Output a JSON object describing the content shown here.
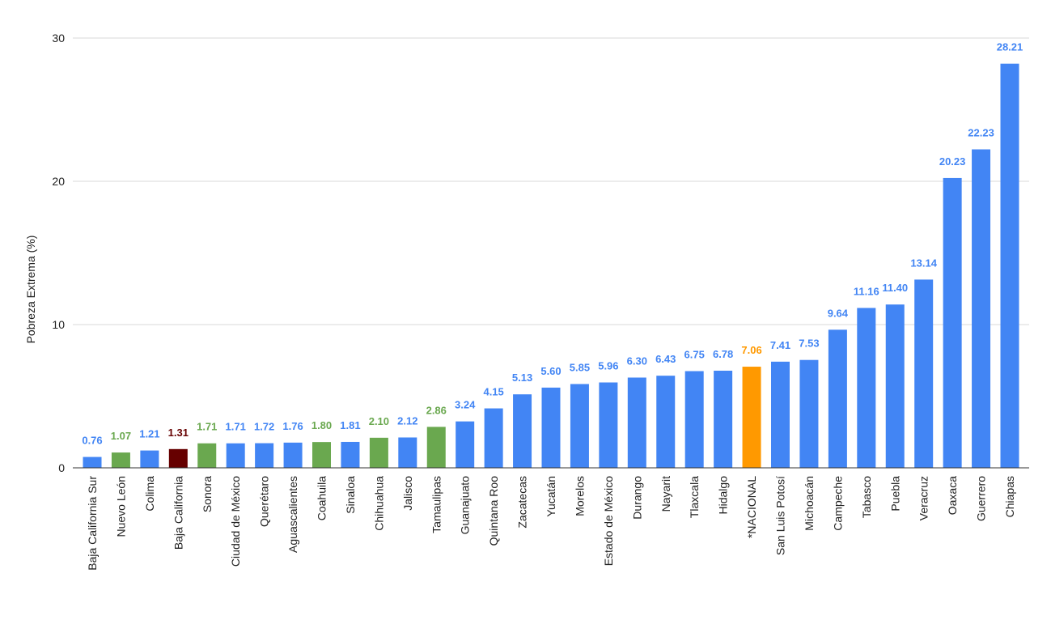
{
  "chart_data": {
    "type": "bar",
    "ylabel": "Pobreza Extrema (%)",
    "xlabel": "",
    "ylim": [
      0,
      30
    ],
    "yticks": [
      0,
      10,
      20,
      30
    ],
    "grid": true,
    "colors": {
      "default": "#4285F4",
      "green": "#6AA84F",
      "dark_red": "#660000",
      "orange": "#FF9900",
      "label_default": "#4285F4",
      "label_green": "#6AA84F",
      "label_dark_red": "#660000",
      "label_orange": "#FF9900"
    },
    "bars": [
      {
        "category": "Baja California Sur",
        "value": 0.76,
        "label": "0.76",
        "color": "default"
      },
      {
        "category": "Nuevo León",
        "value": 1.07,
        "label": "1.07",
        "color": "green"
      },
      {
        "category": "Colima",
        "value": 1.21,
        "label": "1.21",
        "color": "default"
      },
      {
        "category": "Baja California",
        "value": 1.31,
        "label": "1.31",
        "color": "dark_red"
      },
      {
        "category": "Sonora",
        "value": 1.71,
        "label": "1.71",
        "color": "green"
      },
      {
        "category": "Ciudad de México",
        "value": 1.71,
        "label": "1.71",
        "color": "default"
      },
      {
        "category": "Querétaro",
        "value": 1.72,
        "label": "1.72",
        "color": "default"
      },
      {
        "category": "Aguascalientes",
        "value": 1.76,
        "label": "1.76",
        "color": "default"
      },
      {
        "category": "Coahuila",
        "value": 1.8,
        "label": "1.80",
        "color": "green"
      },
      {
        "category": "Sinaloa",
        "value": 1.81,
        "label": "1.81",
        "color": "default"
      },
      {
        "category": "Chihuahua",
        "value": 2.1,
        "label": "2.10",
        "color": "green"
      },
      {
        "category": "Jalisco",
        "value": 2.12,
        "label": "2.12",
        "color": "default"
      },
      {
        "category": "Tamaulipas",
        "value": 2.86,
        "label": "2.86",
        "color": "green"
      },
      {
        "category": "Guanajuato",
        "value": 3.24,
        "label": "3.24",
        "color": "default"
      },
      {
        "category": "Quintana Roo",
        "value": 4.15,
        "label": "4.15",
        "color": "default"
      },
      {
        "category": "Zacatecas",
        "value": 5.13,
        "label": "5.13",
        "color": "default"
      },
      {
        "category": "Yucatán",
        "value": 5.6,
        "label": "5.60",
        "color": "default"
      },
      {
        "category": "Morelos",
        "value": 5.85,
        "label": "5.85",
        "color": "default"
      },
      {
        "category": "Estado de México",
        "value": 5.96,
        "label": "5.96",
        "color": "default"
      },
      {
        "category": "Durango",
        "value": 6.3,
        "label": "6.30",
        "color": "default"
      },
      {
        "category": "Nayarit",
        "value": 6.43,
        "label": "6.43",
        "color": "default"
      },
      {
        "category": "Tlaxcala",
        "value": 6.75,
        "label": "6.75",
        "color": "default"
      },
      {
        "category": "Hidalgo",
        "value": 6.78,
        "label": "6.78",
        "color": "default"
      },
      {
        "category": "*NACIONAL",
        "value": 7.06,
        "label": "7.06",
        "color": "orange"
      },
      {
        "category": "San Luis Potosí",
        "value": 7.41,
        "label": "7.41",
        "color": "default"
      },
      {
        "category": "Michoacán",
        "value": 7.53,
        "label": "7.53",
        "color": "default"
      },
      {
        "category": "Campeche",
        "value": 9.64,
        "label": "9.64",
        "color": "default"
      },
      {
        "category": "Tabasco",
        "value": 11.16,
        "label": "11.16",
        "color": "default"
      },
      {
        "category": "Puebla",
        "value": 11.4,
        "label": "11.40",
        "color": "default"
      },
      {
        "category": "Veracruz",
        "value": 13.14,
        "label": "13.14",
        "color": "default"
      },
      {
        "category": "Oaxaca",
        "value": 20.23,
        "label": "20.23",
        "color": "default"
      },
      {
        "category": "Guerrero",
        "value": 22.23,
        "label": "22.23",
        "color": "default"
      },
      {
        "category": "Chiapas",
        "value": 28.21,
        "label": "28.21",
        "color": "default"
      }
    ]
  }
}
